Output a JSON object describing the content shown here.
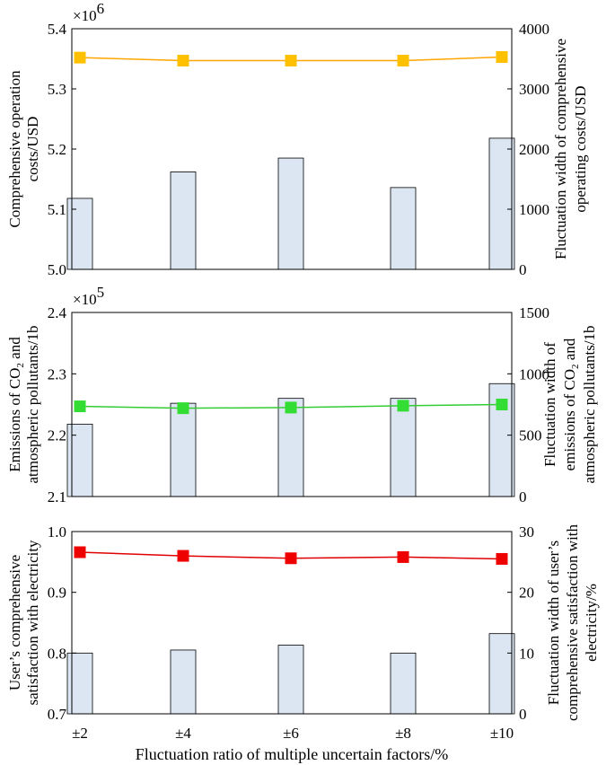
{
  "xlabel": "Fluctuation ratio of multiple uncertain factors/%",
  "chart_data": [
    {
      "type": "bar+line",
      "categories": [
        "±2",
        "±4",
        "±6",
        "±8",
        "±10"
      ],
      "ylabel_left": [
        "Comprehensive operation",
        "costs/USD"
      ],
      "ylabel_right": [
        "Fluctuation width of comprehensive",
        "operating costs/USD"
      ],
      "ylim_left": [
        5.0,
        5.4
      ],
      "yticks_left": [
        "5.0",
        "5.1",
        "5.2",
        "5.3",
        "5.4"
      ],
      "yticks_left_values": [
        5.0,
        5.1,
        5.2,
        5.3,
        5.4
      ],
      "ylim_right": [
        0,
        4000
      ],
      "yticks_right": [
        "0",
        "1000",
        "2000",
        "3000",
        "4000"
      ],
      "yticks_right_values": [
        0,
        1000,
        2000,
        3000,
        4000
      ],
      "multiplier_base": "×10",
      "multiplier_exp": "6",
      "line_values": [
        5.352,
        5.347,
        5.347,
        5.347,
        5.353
      ],
      "bar_values": [
        1180,
        1620,
        1850,
        1360,
        2180
      ],
      "line_color": "#FFA500",
      "marker_color": "#FFC000",
      "bar_fill": "#DCE6F2"
    },
    {
      "type": "bar+line",
      "categories": [
        "±2",
        "±4",
        "±6",
        "±8",
        "±10"
      ],
      "ylabel_left": [
        "Emissions of CO",
        "2",
        " and",
        "atmospheric pollutants/1b"
      ],
      "ylabel_right": [
        "Fluctuation width of",
        "emissions of CO",
        "2",
        " and",
        "atmospheric pollutants/1b"
      ],
      "ylim_left": [
        2.1,
        2.4
      ],
      "yticks_left": [
        "2.1",
        "2.2",
        "2.3",
        "2.4"
      ],
      "yticks_left_values": [
        2.1,
        2.2,
        2.3,
        2.4
      ],
      "ylim_right": [
        0,
        1500
      ],
      "yticks_right": [
        "0",
        "500",
        "1000",
        "1500"
      ],
      "yticks_right_values": [
        0,
        500,
        1000,
        1500
      ],
      "multiplier_base": "×10",
      "multiplier_exp": "5",
      "line_values": [
        2.247,
        2.244,
        2.245,
        2.248,
        2.25
      ],
      "bar_values": [
        590,
        760,
        800,
        800,
        920
      ],
      "line_color": "#33CC33",
      "marker_color": "#33DD33",
      "bar_fill": "#DCE6F2"
    },
    {
      "type": "bar+line",
      "categories": [
        "±2",
        "±4",
        "±6",
        "±8",
        "±10"
      ],
      "ylabel_left": [
        "User’s comprehensive",
        "satisfaction with electricity"
      ],
      "ylabel_right": [
        "Fluctuation width of user’s",
        "comprehensive satisfaction with",
        "electricity/%"
      ],
      "ylim_left": [
        0.7,
        1.0
      ],
      "yticks_left": [
        "0.7",
        "0.8",
        "0.9",
        "1.0"
      ],
      "yticks_left_values": [
        0.7,
        0.8,
        0.9,
        1.0
      ],
      "ylim_right": [
        0,
        30
      ],
      "yticks_right": [
        "0",
        "10",
        "20",
        "30"
      ],
      "yticks_right_values": [
        0,
        10,
        20,
        30
      ],
      "line_values": [
        0.966,
        0.96,
        0.956,
        0.958,
        0.955
      ],
      "bar_values": [
        10.0,
        10.5,
        11.3,
        10.0,
        13.2
      ],
      "line_color": "#E00000",
      "marker_color": "#EE0000",
      "bar_fill": "#DCE6F2"
    }
  ]
}
